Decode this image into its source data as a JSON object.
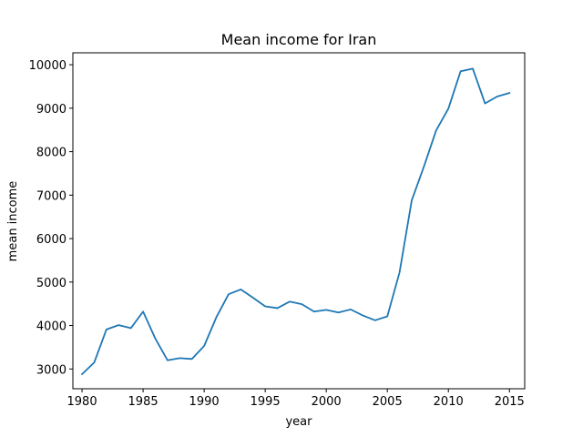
{
  "chart_data": {
    "type": "line",
    "title": "Mean income for Iran",
    "xlabel": "year",
    "ylabel": "mean income",
    "xlim": [
      1979.25,
      2016.25
    ],
    "ylim": [
      2545,
      10275
    ],
    "xticks": [
      1980,
      1985,
      1990,
      1995,
      2000,
      2005,
      2010,
      2015
    ],
    "yticks": [
      3000,
      4000,
      5000,
      6000,
      7000,
      8000,
      9000,
      10000
    ],
    "grid": false,
    "series": [
      {
        "color": "#1f77b4",
        "x": [
          1980,
          1981,
          1982,
          1983,
          1984,
          1985,
          1986,
          1987,
          1988,
          1989,
          1990,
          1991,
          1992,
          1993,
          1994,
          1995,
          1996,
          1997,
          1998,
          1999,
          2000,
          2001,
          2002,
          2003,
          2004,
          2005,
          2006,
          2007,
          2008,
          2009,
          2010,
          2011,
          2012,
          2013,
          2014,
          2015
        ],
        "values": [
          2880,
          3150,
          3910,
          4010,
          3940,
          4320,
          3700,
          3200,
          3250,
          3230,
          3530,
          4190,
          4720,
          4830,
          4640,
          4440,
          4400,
          4550,
          4490,
          4320,
          4360,
          4300,
          4370,
          4230,
          4120,
          4210,
          5220,
          6880,
          7660,
          8490,
          8990,
          9850,
          9910,
          9110,
          9270,
          9350
        ]
      }
    ]
  }
}
